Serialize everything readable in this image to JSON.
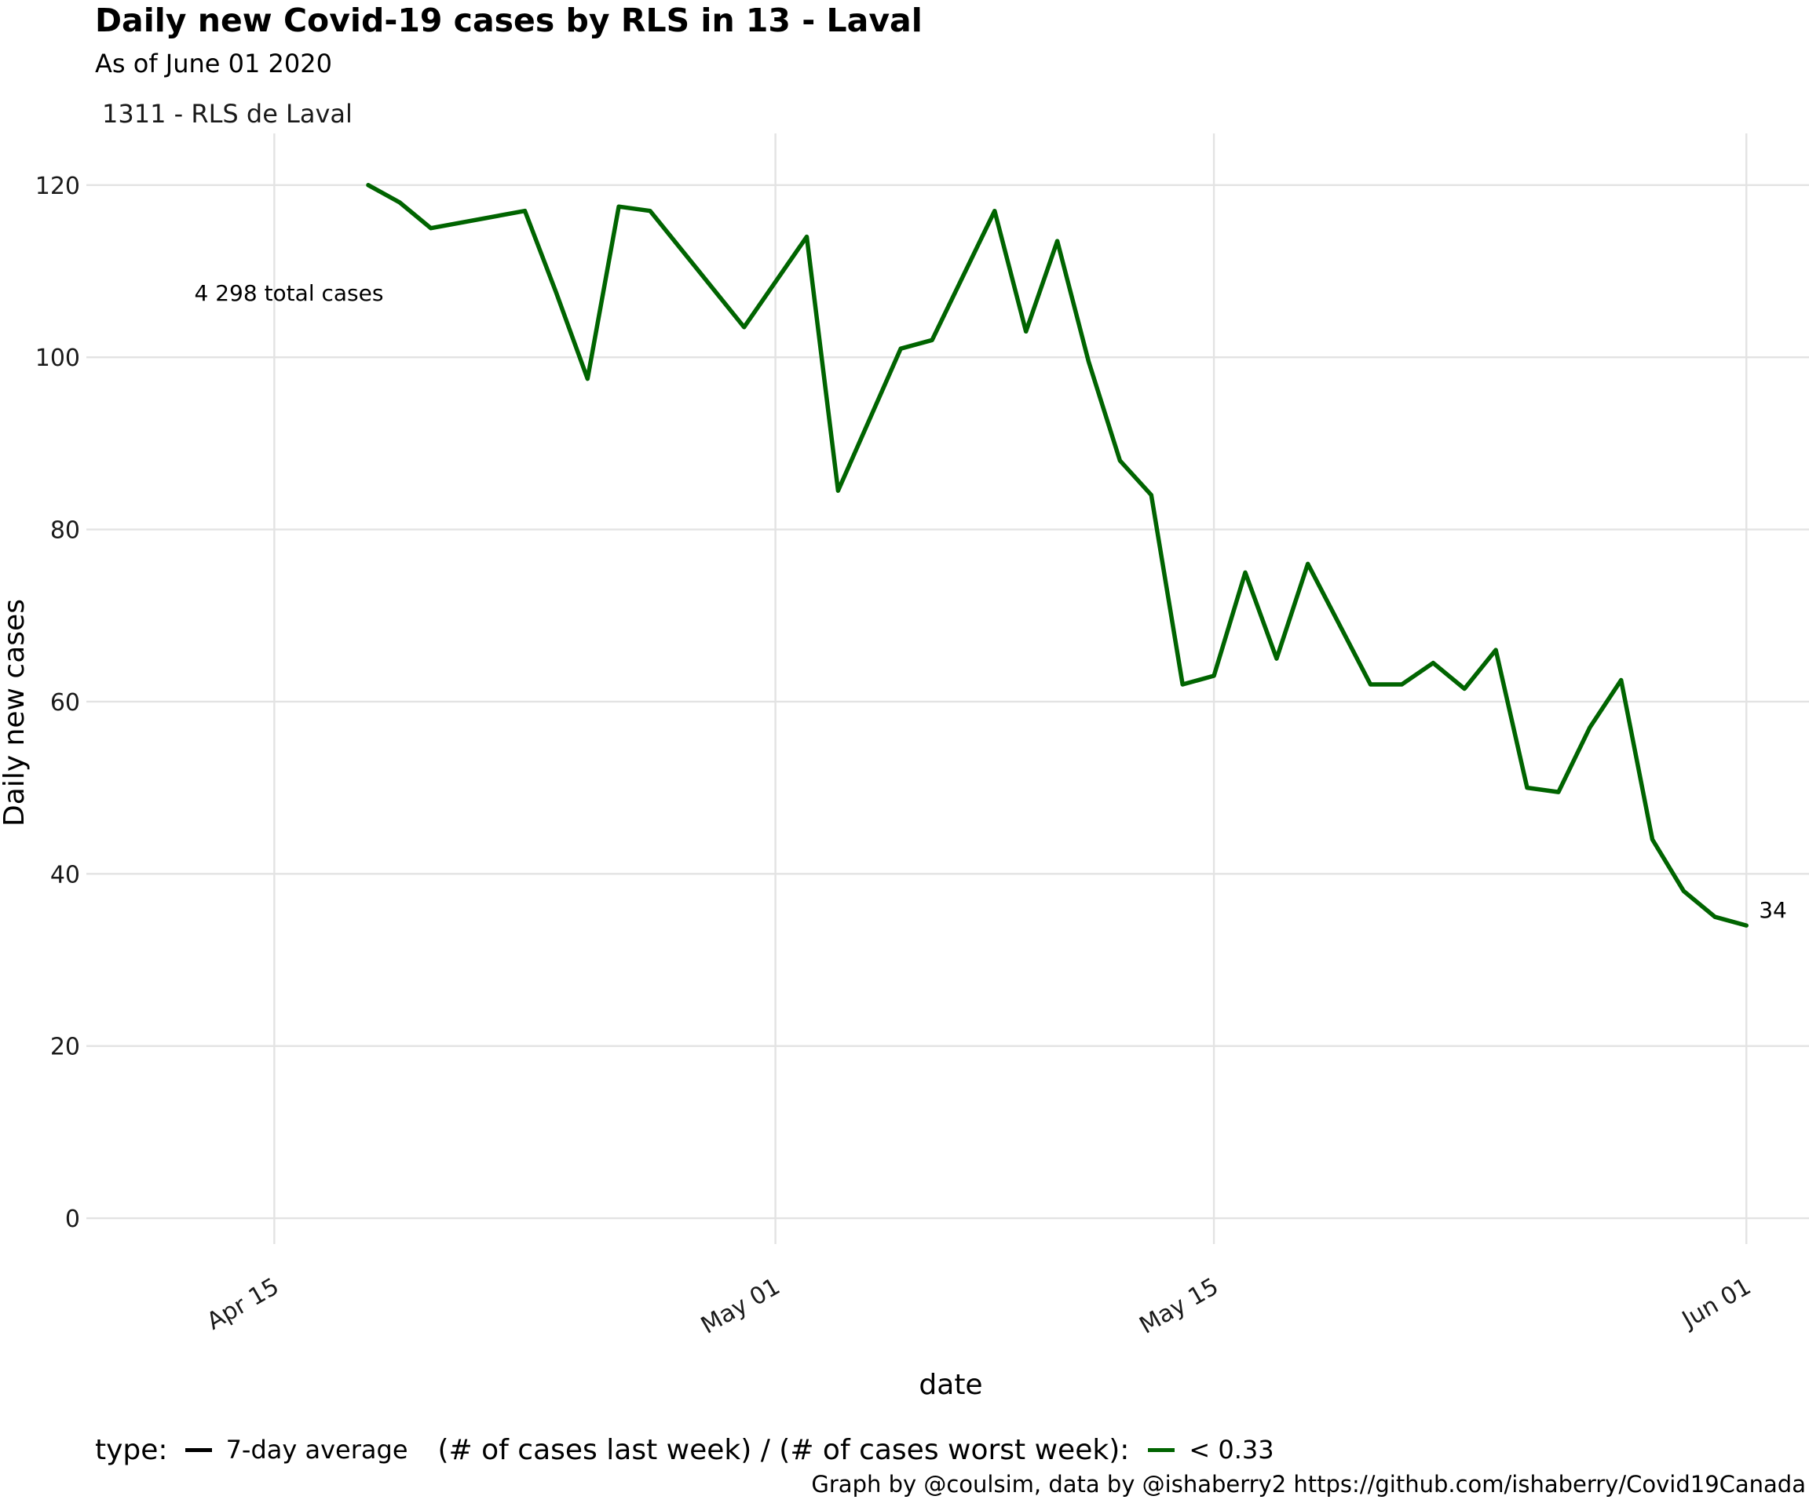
{
  "chart_data": {
    "type": "line",
    "title": "Daily new Covid-19 cases by RLS in 13 - Laval",
    "subtitle": "As of June 01 2020",
    "panel_label": "1311 - RLS de Laval",
    "xlabel": "date",
    "ylabel": "Daily new cases",
    "x_ticks": [
      "Apr 15",
      "May 01",
      "May 15",
      "Jun 01"
    ],
    "x_tick_dates": [
      "2020-04-15",
      "2020-05-01",
      "2020-05-15",
      "2020-06-01"
    ],
    "xlim": [
      "2020-04-09",
      "2020-06-03"
    ],
    "y_ticks": [
      0,
      20,
      40,
      60,
      80,
      100,
      120
    ],
    "ylim": [
      -3,
      126
    ],
    "grid": true,
    "legend_position": "bottom",
    "legend": {
      "type_title": "type:",
      "type_label": "7-day average",
      "ratio_title": "(# of cases last week) / (# of cases worst week):",
      "ratio_label": "< 0.33"
    },
    "annotations": {
      "total": "4 298 total cases",
      "last_value": "34"
    },
    "caption": "Graph by @coulsim, data by @ishaberry2 https://github.com/ishaberry/Covid19Canada",
    "series": [
      {
        "color": "#006400",
        "x": [
          "2020-04-18",
          "2020-04-19",
          "2020-04-20",
          "2020-04-23",
          "2020-04-24",
          "2020-04-25",
          "2020-04-26",
          "2020-04-27",
          "2020-04-30",
          "2020-05-02",
          "2020-05-03",
          "2020-05-05",
          "2020-05-06",
          "2020-05-08",
          "2020-05-09",
          "2020-05-10",
          "2020-05-11",
          "2020-05-12",
          "2020-05-13",
          "2020-05-14",
          "2020-05-15",
          "2020-05-16",
          "2020-05-17",
          "2020-05-18",
          "2020-05-20",
          "2020-05-21",
          "2020-05-22",
          "2020-05-23",
          "2020-05-24",
          "2020-05-25",
          "2020-05-26",
          "2020-05-27",
          "2020-05-28",
          "2020-05-29",
          "2020-05-30",
          "2020-05-31",
          "2020-06-01"
        ],
        "y": [
          120,
          118,
          115,
          117,
          107.5,
          97.5,
          117.5,
          117,
          103.5,
          114,
          84.5,
          101,
          102,
          117,
          103,
          113.5,
          99.5,
          88,
          84,
          62,
          63,
          75,
          65,
          76,
          62,
          62,
          64.5,
          61.5,
          66,
          50,
          49.5,
          57,
          62.5,
          44,
          38,
          35,
          34
        ]
      }
    ]
  }
}
